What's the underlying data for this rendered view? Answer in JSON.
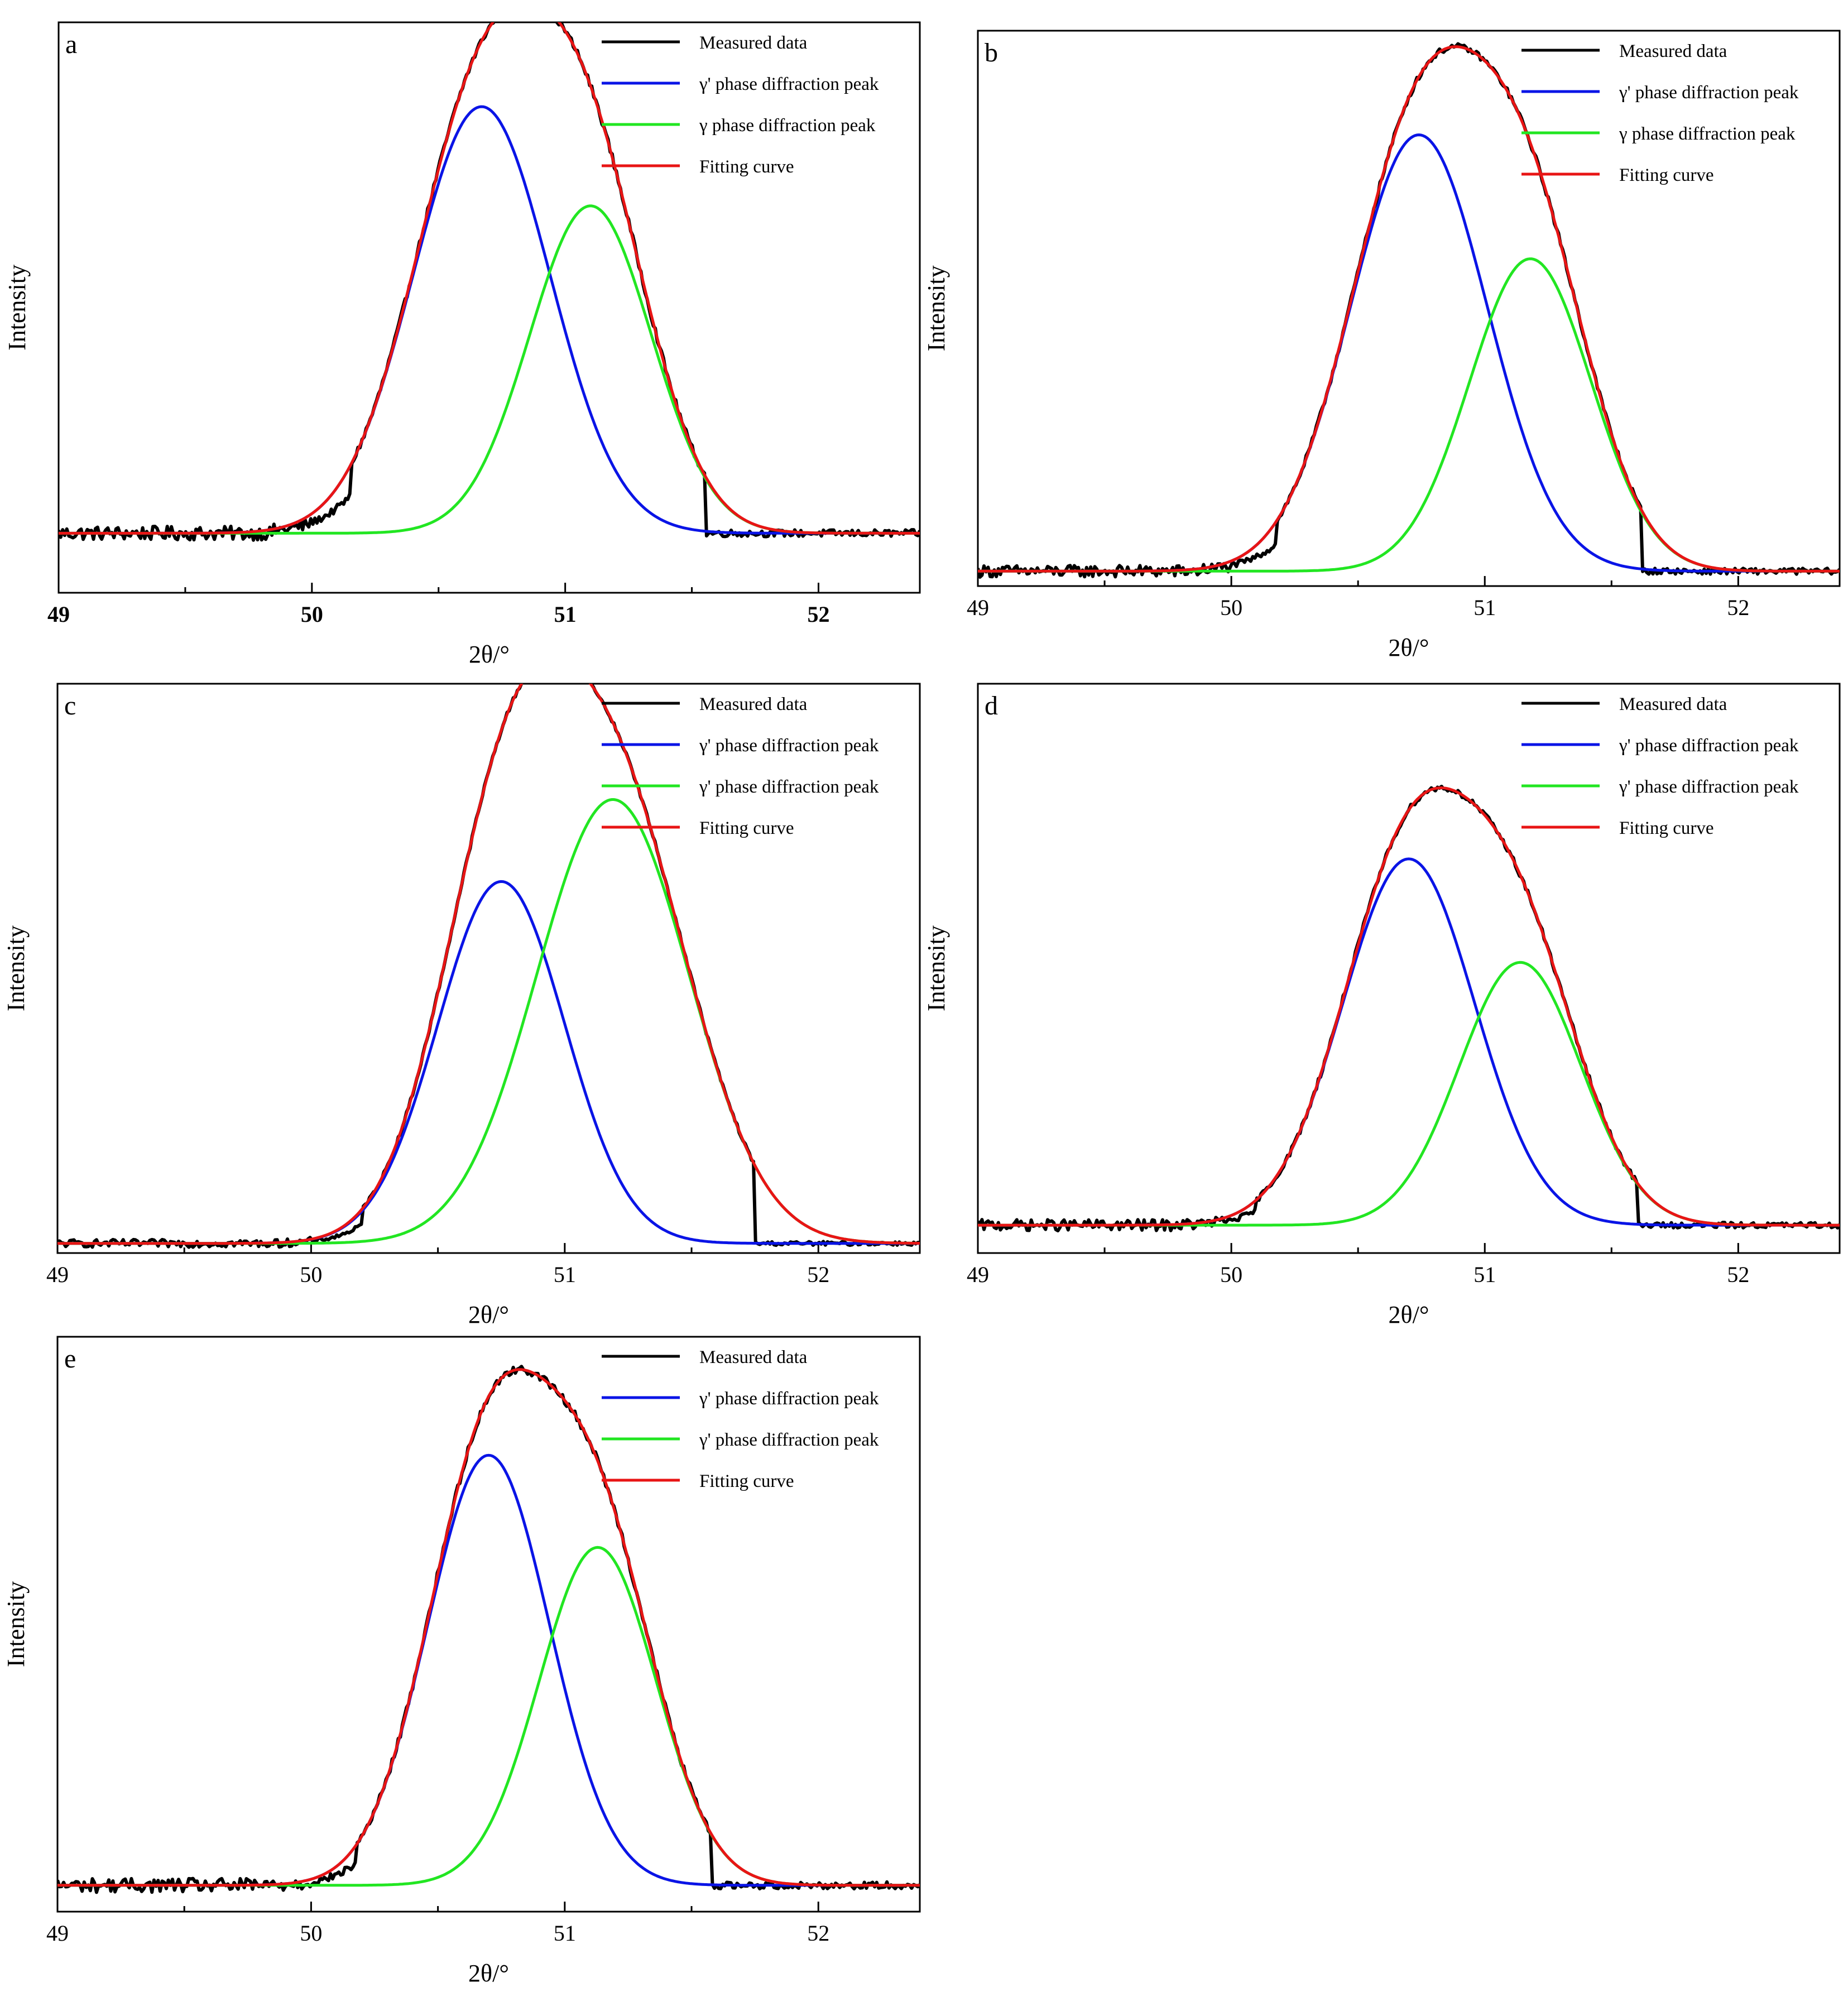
{
  "figure": {
    "panel_labels": [
      "a",
      "b",
      "c",
      "d",
      "e"
    ]
  },
  "chart_data": [
    {
      "type": "line",
      "panel": "a",
      "xlabel": "2θ/°",
      "ylabel": "Intensity",
      "xlim": [
        49,
        52.4
      ],
      "ylim": [
        -0.12,
        1.03
      ],
      "xticks": [
        "49",
        "50",
        "51",
        "52"
      ],
      "baseline": 0,
      "legend": [
        "Measured data",
        "γ' phase diffraction peak",
        "γ phase diffraction peak",
        "Fitting curve"
      ],
      "series": [
        {
          "name": "Measured data",
          "color": "#000000",
          "kind": "measured",
          "noise": 0.007,
          "fall_end": 51.55,
          "rise_start": 50.15,
          "gap_start": 51.55,
          "gap_end": 52.4
        },
        {
          "name": "γ' phase diffraction peak",
          "color": "#0a14e6",
          "kind": "gaussian",
          "center": 50.67,
          "amplitude": 0.86,
          "sigma": 0.27
        },
        {
          "name": "γ phase diffraction peak",
          "color": "#22e622",
          "kind": "gaussian",
          "center": 51.1,
          "amplitude": 0.66,
          "sigma": 0.24
        },
        {
          "name": "Fitting curve",
          "color": "#e81515",
          "kind": "sum"
        }
      ]
    },
    {
      "type": "line",
      "panel": "b",
      "xlabel": "2θ/°",
      "ylabel": "Intensity",
      "xlim": [
        49,
        52.4
      ],
      "ylim": [
        -0.03,
        1.09
      ],
      "xticks": [
        "49",
        "50",
        "51",
        "52"
      ],
      "baseline": 0,
      "legend": [
        "Measured data",
        "γ' phase diffraction peak",
        "γ phase diffraction peak",
        "Fitting curve"
      ],
      "series": [
        {
          "name": "Measured data",
          "color": "#000000",
          "kind": "measured",
          "noise": 0.006,
          "fall_end": 51.62,
          "rise_start": 50.18,
          "gap_start": 51.62,
          "gap_end": 52.4
        },
        {
          "name": "γ' phase diffraction peak",
          "color": "#0a14e6",
          "kind": "gaussian",
          "center": 50.74,
          "amplitude": 0.88,
          "sigma": 0.27
        },
        {
          "name": "γ phase diffraction peak",
          "color": "#22e622",
          "kind": "gaussian",
          "center": 51.18,
          "amplitude": 0.63,
          "sigma": 0.24
        },
        {
          "name": "Fitting curve",
          "color": "#e81515",
          "kind": "sum"
        }
      ]
    },
    {
      "type": "line",
      "panel": "c",
      "xlabel": "2θ/°",
      "ylabel": "Intensity",
      "xlim": [
        49,
        52.4
      ],
      "ylim": [
        -0.02,
        1.16
      ],
      "xticks": [
        "49",
        "50",
        "51",
        "52"
      ],
      "baseline": 0,
      "legend": [
        "Measured data",
        "γ' phase diffraction peak",
        "γ' phase diffraction peak",
        "Fitting curve"
      ],
      "series": [
        {
          "name": "Measured data",
          "color": "#000000",
          "kind": "measured",
          "noise": 0.004,
          "fall_end": 51.75,
          "rise_start": 50.2,
          "gap_start": 51.75,
          "gap_end": 52.4
        },
        {
          "name": "γ' phase diffraction peak",
          "color": "#0a14e6",
          "kind": "gaussian",
          "center": 50.75,
          "amplitude": 0.75,
          "sigma": 0.25
        },
        {
          "name": "γ' phase diffraction peak",
          "color": "#22e622",
          "kind": "gaussian",
          "center": 51.19,
          "amplitude": 0.92,
          "sigma": 0.3
        },
        {
          "name": "Fitting curve",
          "color": "#e81515",
          "kind": "sum"
        }
      ]
    },
    {
      "type": "line",
      "panel": "d",
      "xlabel": "2θ/°",
      "ylabel": "Intensity",
      "xlim": [
        49,
        52.4
      ],
      "ylim": [
        -0.07,
        1.36
      ],
      "xticks": [
        "49",
        "50",
        "51",
        "52"
      ],
      "baseline": 0,
      "legend": [
        "Measured data",
        "γ' phase diffraction peak",
        "γ' phase diffraction peak",
        "Fitting curve"
      ],
      "series": [
        {
          "name": "Measured data",
          "color": "#000000",
          "kind": "measured",
          "noise": 0.007,
          "fall_end": 51.6,
          "rise_start": 50.1,
          "gap_start": 51.6,
          "gap_end": 52.4
        },
        {
          "name": "γ' phase diffraction peak",
          "color": "#0a14e6",
          "kind": "gaussian",
          "center": 50.7,
          "amplitude": 0.92,
          "sigma": 0.26
        },
        {
          "name": "γ' phase diffraction peak",
          "color": "#22e622",
          "kind": "gaussian",
          "center": 51.14,
          "amplitude": 0.66,
          "sigma": 0.24
        },
        {
          "name": "Fitting curve",
          "color": "#e81515",
          "kind": "sum"
        }
      ]
    },
    {
      "type": "line",
      "panel": "e",
      "xlabel": "2θ/°",
      "ylabel": "Intensity",
      "xlim": [
        49,
        52.4
      ],
      "ylim": [
        -0.06,
        1.25
      ],
      "xticks": [
        "49",
        "50",
        "51",
        "52"
      ],
      "baseline": 0,
      "legend": [
        "Measured data",
        "γ' phase diffraction peak",
        "γ' phase diffraction peak",
        "Fitting curve"
      ],
      "series": [
        {
          "name": "Measured data",
          "color": "#000000",
          "kind": "measured",
          "noise": 0.008,
          "fall_end": 51.58,
          "rise_start": 50.18,
          "gap_start": 51.58,
          "gap_end": 52.4
        },
        {
          "name": "γ' phase diffraction peak",
          "color": "#0a14e6",
          "kind": "gaussian",
          "center": 50.7,
          "amplitude": 0.98,
          "sigma": 0.24
        },
        {
          "name": "γ' phase diffraction peak",
          "color": "#22e622",
          "kind": "gaussian",
          "center": 51.13,
          "amplitude": 0.77,
          "sigma": 0.23
        },
        {
          "name": "Fitting curve",
          "color": "#e81515",
          "kind": "sum"
        }
      ]
    }
  ]
}
